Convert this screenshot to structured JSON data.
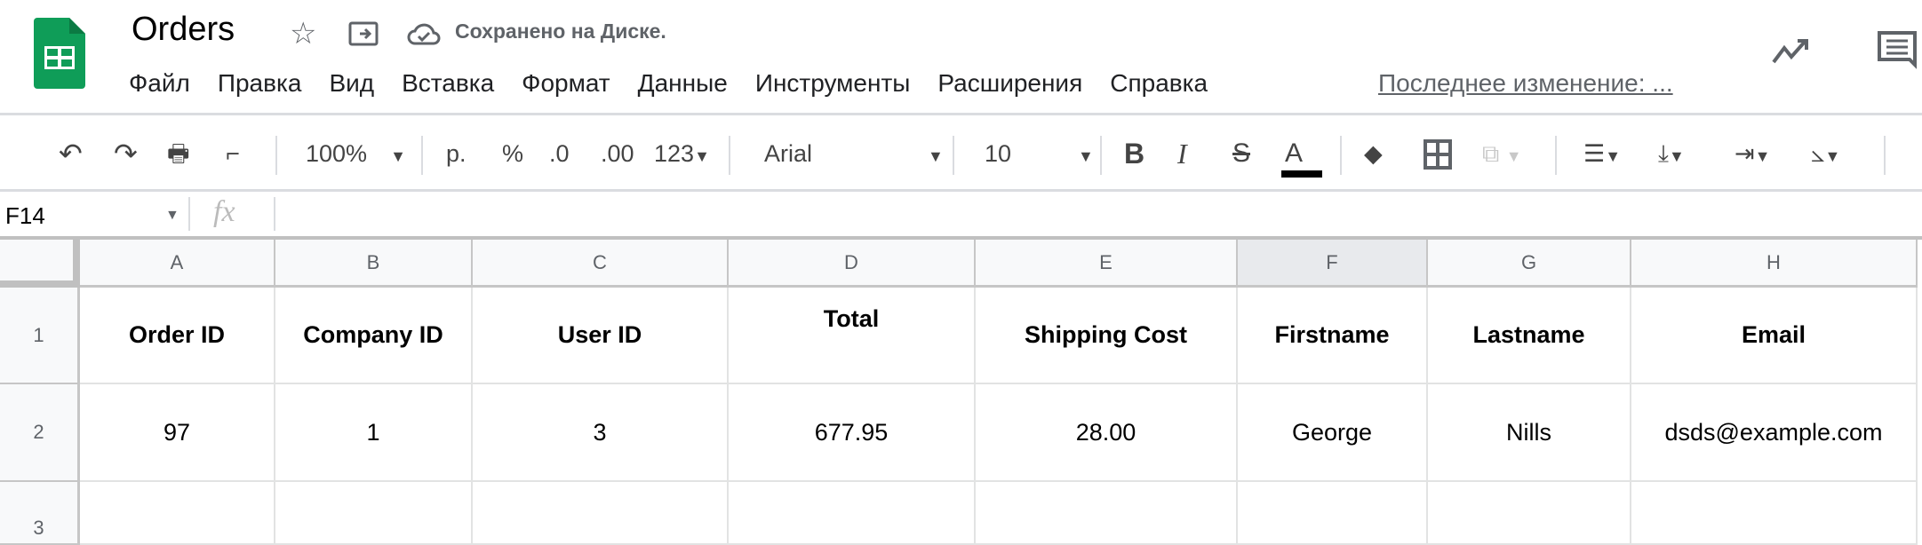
{
  "header": {
    "title": "Orders",
    "saved_status": "Сохранено на Диске.",
    "last_edit": "Последнее изменение: ...",
    "menu": [
      "Файл",
      "Правка",
      "Вид",
      "Вставка",
      "Формат",
      "Данные",
      "Инструменты",
      "Расширения",
      "Справка"
    ]
  },
  "toolbar": {
    "zoom": "100%",
    "currency": "р.",
    "percent": "%",
    "dec_decrease": ".0",
    "dec_increase": ".00",
    "number_format": "123",
    "font": "Arial",
    "font_size": "10",
    "bold": "B",
    "italic": "I",
    "strike": "S",
    "text_color": "A"
  },
  "formula_bar": {
    "cell_ref": "F14",
    "fx": "fx",
    "value": ""
  },
  "grid": {
    "columns": [
      "A",
      "B",
      "C",
      "D",
      "E",
      "F",
      "G",
      "H"
    ],
    "selected_column": "F",
    "rows": [
      "1",
      "2",
      "3"
    ],
    "data": [
      [
        "Order ID",
        "Company ID",
        "User ID",
        "Total",
        "Shipping Cost",
        "Firstname",
        "Lastname",
        "Email"
      ],
      [
        "97",
        "1",
        "3",
        "677.95",
        "28.00",
        "George",
        "Nills",
        "dsds@example.com"
      ],
      [
        "",
        "",
        "",
        "",
        "",
        "",
        "",
        ""
      ]
    ]
  },
  "colors": {
    "sheets_green": "#0f9d58",
    "selected_header": "#e8eaed"
  }
}
